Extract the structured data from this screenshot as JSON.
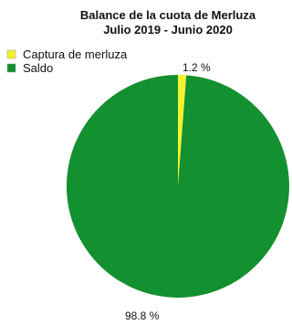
{
  "chart_data": {
    "type": "pie",
    "title_lines": [
      "Balance de la cuota de Merluza",
      "Julio 2019 - Junio 2020"
    ],
    "slices": [
      {
        "label": "Captura de merluza",
        "value": 1.2,
        "value_label": "1.2 %",
        "color": "#f2f230"
      },
      {
        "label": "Saldo",
        "value": 98.8,
        "value_label": "98.8 %",
        "color": "#13902f"
      }
    ],
    "legend": {
      "position": "top-left"
    },
    "start_angle_deg": 0,
    "direction": "clockwise"
  }
}
